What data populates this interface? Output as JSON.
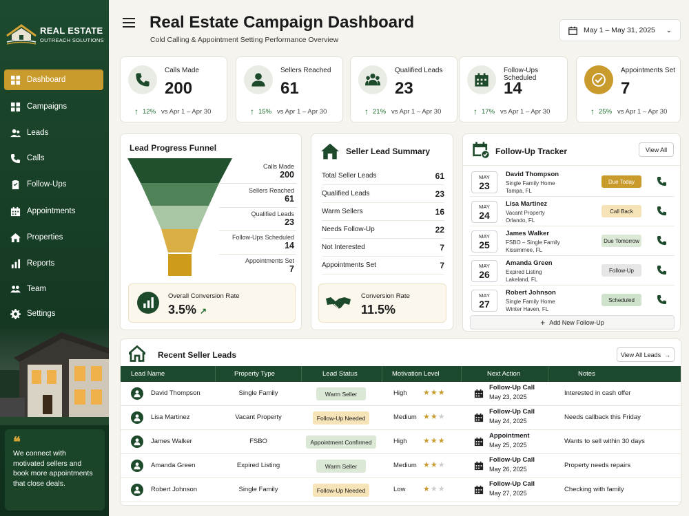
{
  "brand": {
    "title": "REAL ESTATE",
    "subtitle": "OUTREACH SOLUTIONS"
  },
  "sidebar": {
    "items": [
      {
        "label": "Dashboard",
        "icon": "grid-icon",
        "active": true
      },
      {
        "label": "Campaigns",
        "icon": "grid-icon"
      },
      {
        "label": "Leads",
        "icon": "users-icon"
      },
      {
        "label": "Calls",
        "icon": "phone-icon"
      },
      {
        "label": "Follow-Ups",
        "icon": "clipboard-icon"
      },
      {
        "label": "Appointments",
        "icon": "calendar-icon"
      },
      {
        "label": "Properties",
        "icon": "house-icon"
      },
      {
        "label": "Reports",
        "icon": "bar-chart-icon"
      },
      {
        "label": "Team",
        "icon": "team-icon"
      },
      {
        "label": "Settings",
        "icon": "gear-icon"
      }
    ],
    "quote": "We connect with motivated sellers and book more appointments that close deals."
  },
  "header": {
    "title": "Real Estate Campaign Dashboard",
    "subtitle": "Cold Calling & Appointment Setting Performance Overview",
    "date_range": "May 1 – May 31, 2025"
  },
  "stats": [
    {
      "label": "Calls Made",
      "value": "200",
      "change": "12%",
      "compare": "vs Apr 1 – Apr 30",
      "icon": "phone-icon"
    },
    {
      "label": "Sellers Reached",
      "value": "61",
      "change": "15%",
      "compare": "vs Apr 1 – Apr 30",
      "icon": "person-icon"
    },
    {
      "label": "Qualified Leads",
      "value": "23",
      "change": "21%",
      "compare": "vs Apr 1 – Apr 30",
      "icon": "group-icon"
    },
    {
      "label": "Follow-Ups Scheduled",
      "value": "14",
      "change": "17%",
      "compare": "vs Apr 1 – Apr 30",
      "icon": "calendar-icon"
    },
    {
      "label": "Appointments Set",
      "value": "7",
      "change": "25%",
      "compare": "vs Apr 1 – Apr 30",
      "icon": "check-circle-icon"
    }
  ],
  "funnel": {
    "title": "Lead Progress Funnel",
    "stages": [
      {
        "label": "Calls Made",
        "value": "200",
        "color": "#21502f"
      },
      {
        "label": "Sellers Reached",
        "value": "61",
        "color": "#4f8256"
      },
      {
        "label": "Qualified Leads",
        "value": "23",
        "color": "#a8c6a3"
      },
      {
        "label": "Follow-Ups Scheduled",
        "value": "14",
        "color": "#d9ae42"
      },
      {
        "label": "Appointments Set",
        "value": "7",
        "color": "#cf9b1b"
      }
    ],
    "conversion_label": "Overall Conversion Rate",
    "conversion_value": "3.5%"
  },
  "summary": {
    "title": "Seller Lead Summary",
    "rows": [
      {
        "label": "Total Seller Leads",
        "value": "61"
      },
      {
        "label": "Qualified Leads",
        "value": "23"
      },
      {
        "label": "Warm Sellers",
        "value": "16"
      },
      {
        "label": "Needs Follow-Up",
        "value": "22"
      },
      {
        "label": "Not Interested",
        "value": "7"
      },
      {
        "label": "Appointments Set",
        "value": "7"
      }
    ],
    "conversion_label": "Conversion Rate",
    "conversion_value": "11.5%"
  },
  "tracker": {
    "title": "Follow-Up Tracker",
    "view_all": "View All",
    "add": "Add New Follow-Up",
    "items": [
      {
        "month": "MAY",
        "day": "23",
        "name": "David Thompson",
        "type": "Single Family Home",
        "location": "Tampa, FL",
        "status": "Due Today",
        "bg": "#c99a2c",
        "fg": "#ffffff"
      },
      {
        "month": "MAY",
        "day": "24",
        "name": "Lisa Martinez",
        "type": "Vacant Property",
        "location": "Orlando, FL",
        "status": "Call Back",
        "bg": "#f6e3b8",
        "fg": "#222222"
      },
      {
        "month": "MAY",
        "day": "25",
        "name": "James Walker",
        "type": "FSBO – Single Family",
        "location": "Kissimmee, FL",
        "status": "Due Tomorrow",
        "bg": "#dbe8d5",
        "fg": "#222222"
      },
      {
        "month": "MAY",
        "day": "26",
        "name": "Amanda Green",
        "type": "Expired Listing",
        "location": "Lakeland, FL",
        "status": "Follow-Up",
        "bg": "#e6e6e6",
        "fg": "#222222"
      },
      {
        "month": "MAY",
        "day": "27",
        "name": "Robert Johnson",
        "type": "Single Family Home",
        "location": "Winter Haven, FL",
        "status": "Scheduled",
        "bg": "#cfe3cc",
        "fg": "#222222"
      }
    ]
  },
  "leads": {
    "title": "Recent Seller Leads",
    "view_all": "View All Leads",
    "columns": [
      "Lead Name",
      "Property Type",
      "Lead Status",
      "Motivation Level",
      "Next Action",
      "Notes"
    ],
    "rows": [
      {
        "name": "David Thompson",
        "property": "Single Family",
        "status": "Warm Seller",
        "status_bg": "#dbe8d5",
        "motivation": "High",
        "stars": 3,
        "action": "Follow-Up Call",
        "date": "May 23, 2025",
        "notes": "Interested in cash offer"
      },
      {
        "name": "Lisa Martinez",
        "property": "Vacant Property",
        "status": "Follow-Up Needed",
        "status_bg": "#f6e3b8",
        "motivation": "Medium",
        "stars": 2,
        "action": "Follow-Up Call",
        "date": "May 24, 2025",
        "notes": "Needs callback this Friday"
      },
      {
        "name": "James Walker",
        "property": "FSBO",
        "status": "Appointment Confirmed",
        "status_bg": "#dbe8d5",
        "motivation": "High",
        "stars": 3,
        "action": "Appointment",
        "date": "May 25, 2025",
        "notes": "Wants to sell within 30 days"
      },
      {
        "name": "Amanda Green",
        "property": "Expired Listing",
        "status": "Warm Seller",
        "status_bg": "#dbe8d5",
        "motivation": "Medium",
        "stars": 2,
        "action": "Follow-Up Call",
        "date": "May 26, 2025",
        "notes": "Property needs repairs"
      },
      {
        "name": "Robert Johnson",
        "property": "Single Family",
        "status": "Follow-Up Needed",
        "status_bg": "#f6e3b8",
        "motivation": "Low",
        "stars": 1,
        "action": "Follow-Up Call",
        "date": "May 27, 2025",
        "notes": "Checking with family"
      }
    ]
  }
}
